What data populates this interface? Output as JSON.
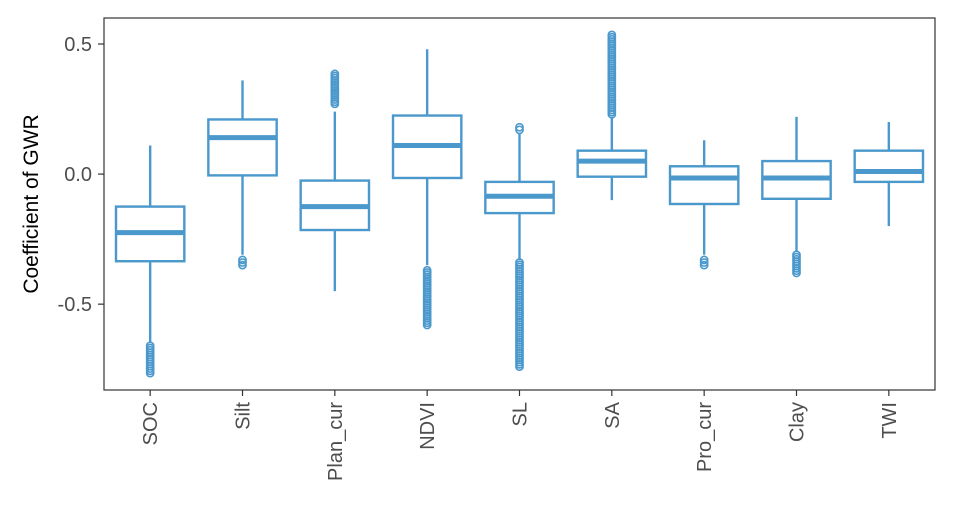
{
  "chart_data": {
    "type": "box",
    "title": "",
    "xlabel": "",
    "ylabel": "Coefficient of GWR",
    "ylim": [
      -0.83,
      0.6
    ],
    "yticks": [
      -0.5,
      0.0,
      0.5
    ],
    "ytick_labels": [
      "-0.5",
      "0.0",
      "0.5"
    ],
    "grid": false,
    "legend": "none",
    "color": "#4a98cc",
    "categories": [
      "SOC",
      "Silt",
      "Plan_cur",
      "NDVI",
      "SL",
      "SA",
      "Pro_cur",
      "Clay",
      "TWI"
    ],
    "boxes": [
      {
        "category": "SOC",
        "whisker_low": -0.65,
        "q1": -0.335,
        "median": -0.225,
        "q3": -0.125,
        "whisker_high": 0.11,
        "outliers_low": [
          -0.765,
          -0.66
        ],
        "outliers_high": []
      },
      {
        "category": "Silt",
        "whisker_low": -0.31,
        "q1": -0.005,
        "median": 0.14,
        "q3": 0.21,
        "whisker_high": 0.36,
        "outliers_low": [
          -0.35,
          -0.33
        ],
        "outliers_high": []
      },
      {
        "category": "Plan_cur",
        "whisker_low": -0.45,
        "q1": -0.215,
        "median": -0.125,
        "q3": -0.025,
        "whisker_high": 0.24,
        "outliers_low": [],
        "outliers_high": [
          0.27,
          0.385
        ]
      },
      {
        "category": "NDVI",
        "whisker_low": -0.35,
        "q1": -0.015,
        "median": 0.11,
        "q3": 0.225,
        "whisker_high": 0.48,
        "outliers_low": [
          -0.58,
          -0.37
        ],
        "outliers_high": []
      },
      {
        "category": "SL",
        "whisker_low": -0.33,
        "q1": -0.15,
        "median": -0.085,
        "q3": -0.03,
        "whisker_high": 0.155,
        "outliers_low": [
          -0.74,
          -0.34
        ],
        "outliers_high": [
          0.17,
          0.18
        ]
      },
      {
        "category": "SA",
        "whisker_low": -0.1,
        "q1": -0.01,
        "median": 0.05,
        "q3": 0.09,
        "whisker_high": 0.22,
        "outliers_low": [],
        "outliers_high": [
          0.23,
          0.535
        ]
      },
      {
        "category": "Pro_cur",
        "whisker_low": -0.31,
        "q1": -0.115,
        "median": -0.015,
        "q3": 0.03,
        "whisker_high": 0.13,
        "outliers_low": [
          -0.35,
          -0.33
        ],
        "outliers_high": []
      },
      {
        "category": "Clay",
        "whisker_low": -0.3,
        "q1": -0.095,
        "median": -0.015,
        "q3": 0.05,
        "whisker_high": 0.22,
        "outliers_low": [
          -0.38,
          -0.31
        ],
        "outliers_high": []
      },
      {
        "category": "TWI",
        "whisker_low": -0.2,
        "q1": -0.03,
        "median": 0.01,
        "q3": 0.09,
        "whisker_high": 0.2,
        "outliers_low": [],
        "outliers_high": []
      }
    ]
  }
}
